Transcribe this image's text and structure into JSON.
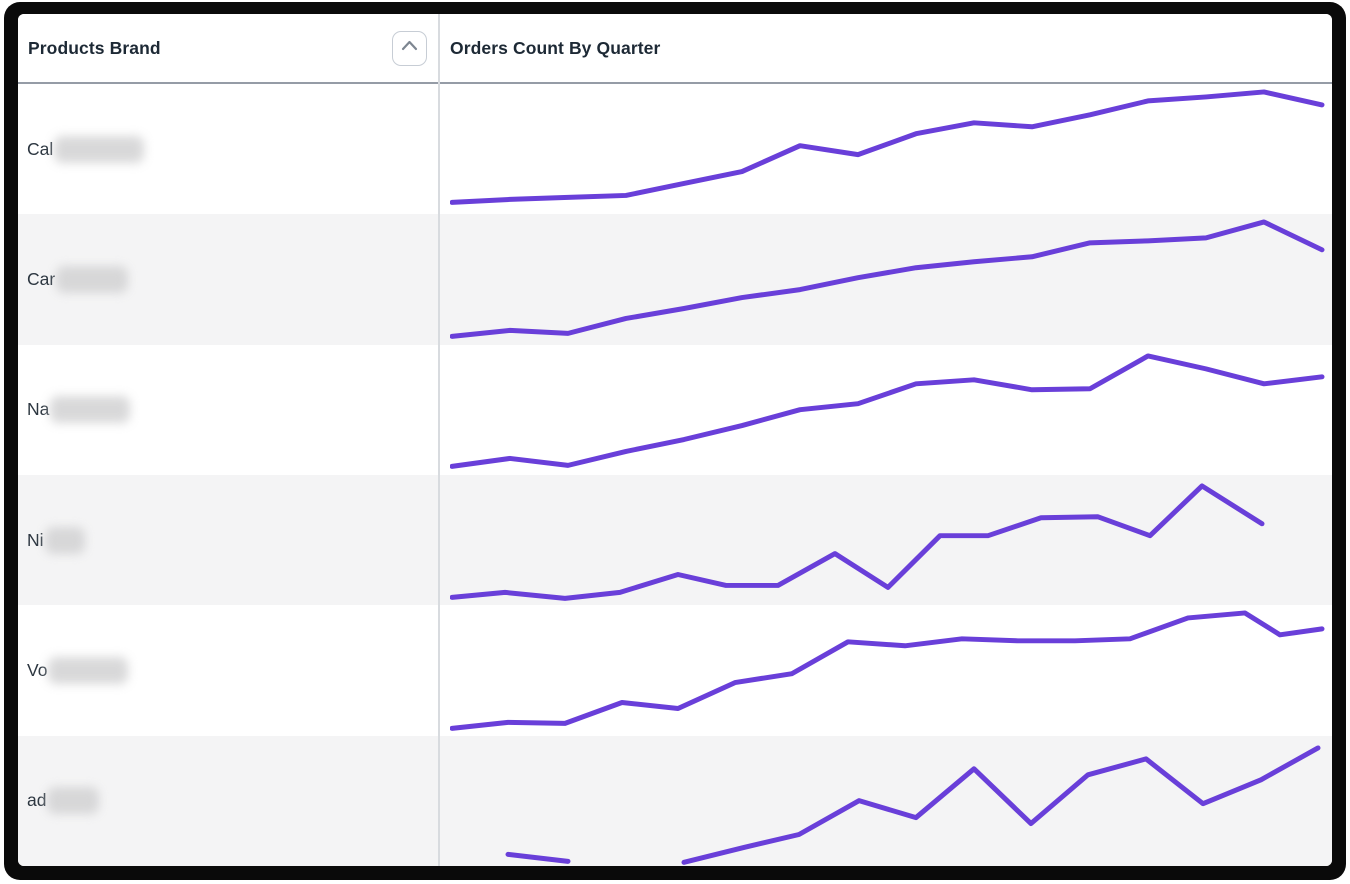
{
  "header": {
    "columns": [
      {
        "label": "Products Brand",
        "sort_icon": "chevron-up-icon"
      },
      {
        "label": "Orders Count By Quarter"
      }
    ]
  },
  "rows": [
    {
      "brand_prefix": "Cal",
      "brand_redacted": true,
      "redaction_width": 90,
      "sparkline": {
        "segments": [
          [
            [
              2,
              119
            ],
            [
              60,
              116
            ],
            [
              118,
              114
            ],
            [
              176,
              112
            ],
            [
              234,
              100
            ],
            [
              292,
              88
            ],
            [
              350,
              62
            ],
            [
              408,
              71
            ],
            [
              466,
              50
            ],
            [
              524,
              39
            ],
            [
              582,
              43
            ],
            [
              640,
              31
            ],
            [
              698,
              17
            ],
            [
              756,
              13
            ],
            [
              814,
              8
            ],
            [
              872,
              21
            ]
          ]
        ]
      }
    },
    {
      "brand_prefix": "Car",
      "brand_redacted": true,
      "redaction_width": 72,
      "sparkline": {
        "segments": [
          [
            [
              2,
              123
            ],
            [
              60,
              117
            ],
            [
              118,
              120
            ],
            [
              176,
              105
            ],
            [
              234,
              95
            ],
            [
              292,
              84
            ],
            [
              350,
              76
            ],
            [
              408,
              64
            ],
            [
              466,
              54
            ],
            [
              524,
              48
            ],
            [
              582,
              43
            ],
            [
              640,
              29
            ],
            [
              698,
              27
            ],
            [
              756,
              24
            ],
            [
              814,
              8
            ],
            [
              872,
              36
            ]
          ]
        ]
      }
    },
    {
      "brand_prefix": "Na",
      "brand_redacted": true,
      "redaction_width": 80,
      "sparkline": {
        "segments": [
          [
            [
              2,
              122
            ],
            [
              60,
              114
            ],
            [
              118,
              121
            ],
            [
              176,
              107
            ],
            [
              234,
              95
            ],
            [
              292,
              81
            ],
            [
              350,
              65
            ],
            [
              408,
              59
            ],
            [
              466,
              39
            ],
            [
              524,
              35
            ],
            [
              582,
              45
            ],
            [
              640,
              44
            ],
            [
              698,
              11
            ],
            [
              756,
              24
            ],
            [
              814,
              39
            ],
            [
              872,
              32
            ]
          ]
        ]
      }
    },
    {
      "brand_prefix": "Ni",
      "brand_redacted": true,
      "redaction_width": 40,
      "sparkline": {
        "segments": [
          [
            [
              2,
              123
            ],
            [
              55,
              118
            ],
            [
              115,
              124
            ],
            [
              170,
              118
            ],
            [
              228,
              100
            ],
            [
              276,
              111
            ],
            [
              328,
              111
            ],
            [
              385,
              79
            ],
            [
              438,
              113
            ],
            [
              490,
              61
            ],
            [
              538,
              61
            ],
            [
              591,
              43
            ],
            [
              648,
              42
            ],
            [
              700,
              61
            ],
            [
              752,
              11
            ],
            [
              812,
              49
            ]
          ]
        ]
      }
    },
    {
      "brand_prefix": "Vo",
      "brand_redacted": true,
      "redaction_width": 80,
      "sparkline": {
        "segments": [
          [
            [
              2,
              124
            ],
            [
              58,
              118
            ],
            [
              115,
              119
            ],
            [
              172,
              98
            ],
            [
              228,
              104
            ],
            [
              285,
              78
            ],
            [
              342,
              69
            ],
            [
              398,
              37
            ],
            [
              455,
              41
            ],
            [
              512,
              34
            ],
            [
              568,
              36
            ],
            [
              625,
              36
            ],
            [
              680,
              34
            ],
            [
              738,
              13
            ],
            [
              795,
              8
            ],
            [
              830,
              30
            ],
            [
              872,
              24
            ]
          ]
        ]
      }
    },
    {
      "brand_prefix": "ad",
      "brand_redacted": true,
      "redaction_width": 52,
      "sparkline": {
        "segments": [
          [
            [
              58,
              119
            ],
            [
              118,
              126
            ]
          ],
          [
            [
              234,
              127
            ],
            [
              294,
              112
            ],
            [
              349,
              99
            ],
            [
              409,
              65
            ],
            [
              466,
              82
            ],
            [
              524,
              33
            ],
            [
              581,
              88
            ],
            [
              638,
              39
            ],
            [
              696,
              23
            ],
            [
              753,
              68
            ],
            [
              811,
              44
            ],
            [
              868,
              12
            ]
          ]
        ]
      }
    }
  ],
  "chart": {
    "viewbox_width": 875,
    "viewbox_height": 131,
    "stroke_width": 5
  },
  "colors": {
    "accent": "#693fd9",
    "row_alt_background": "#f4f4f5",
    "header_text": "#1d2935",
    "body_text": "#2c3640",
    "column_divider": "#d8dbdf",
    "header_border": "#959ca6",
    "frame": "#0a0a0a"
  }
}
